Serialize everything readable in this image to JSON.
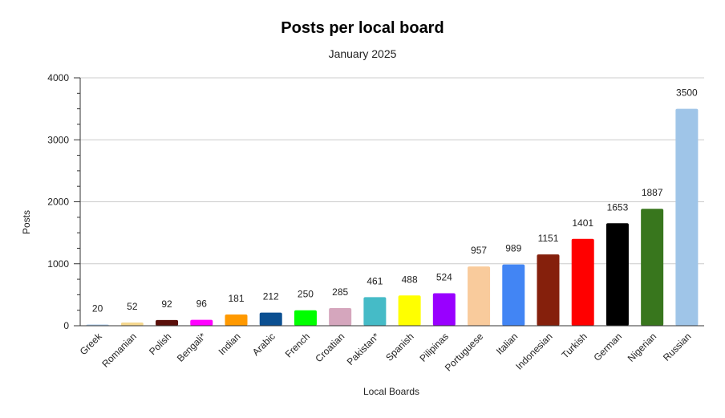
{
  "chart_data": {
    "type": "bar",
    "title": "Posts per local board",
    "subtitle": "January 2025",
    "xlabel": "Local Boards",
    "ylabel": "Posts",
    "ylim": [
      0,
      4000
    ],
    "yticks": [
      0,
      1000,
      2000,
      3000,
      4000
    ],
    "grid": true,
    "legend": "none",
    "categories": [
      "Greek",
      "Romanian",
      "Polish",
      "Bengali*",
      "Indian",
      "Arabic",
      "French",
      "Croatian",
      "Pakistan*",
      "Spanish",
      "Pilipinas",
      "Portuguese",
      "Italian",
      "Indonesian",
      "Turkish",
      "German",
      "Nigerian",
      "Russian"
    ],
    "values": [
      20,
      52,
      92,
      96,
      181,
      212,
      250,
      285,
      461,
      488,
      524,
      957,
      989,
      1151,
      1401,
      1653,
      1887,
      3500
    ],
    "colors": [
      "#a8c8e8",
      "#f5d78e",
      "#5a0f0a",
      "#ff00ff",
      "#ff9900",
      "#0b4f91",
      "#00ff00",
      "#d5a6bd",
      "#45bbc7",
      "#ffff00",
      "#9900ff",
      "#f9cb9c",
      "#4285f4",
      "#85200c",
      "#ff0000",
      "#000000",
      "#38761d",
      "#9fc5e8"
    ]
  }
}
